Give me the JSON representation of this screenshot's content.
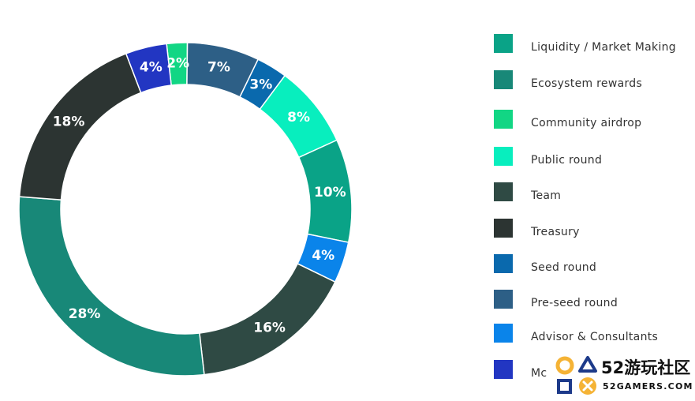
{
  "chart_data": {
    "type": "pie",
    "title": "",
    "legend_position": "right",
    "categories": [
      "Liquidity / Market Making",
      "Ecosystem rewards",
      "Community airdrop",
      "Public round",
      "Team",
      "Treasury",
      "Seed round",
      "Pre-seed round",
      "Advisor & Consultants",
      "Mc"
    ],
    "colors": [
      "#0aa387",
      "#188878",
      "#12d684",
      "#08eebe",
      "#2f4a44",
      "#2c3432",
      "#0a69ad",
      "#2d5f86",
      "#0a84ea",
      "#2236c2"
    ],
    "slices": [
      {
        "label": "2%",
        "value": 2,
        "color": "#12d684"
      },
      {
        "label": "7%",
        "value": 7,
        "color": "#2d5f86"
      },
      {
        "label": "3%",
        "value": 3,
        "color": "#0a69ad"
      },
      {
        "label": "8%",
        "value": 8,
        "color": "#08eebe"
      },
      {
        "label": "10%",
        "value": 10,
        "color": "#0aa387"
      },
      {
        "label": "4%",
        "value": 4,
        "color": "#0a84ea"
      },
      {
        "label": "16%",
        "value": 16,
        "color": "#2f4a44"
      },
      {
        "label": "28%",
        "value": 28,
        "color": "#188878"
      },
      {
        "label": "18%",
        "value": 18,
        "color": "#2c3432"
      },
      {
        "label": "4%",
        "value": 4,
        "color": "#2236c2"
      }
    ]
  },
  "watermark": {
    "text": "52游玩社区",
    "subtext": "52GAMERS.COM"
  }
}
